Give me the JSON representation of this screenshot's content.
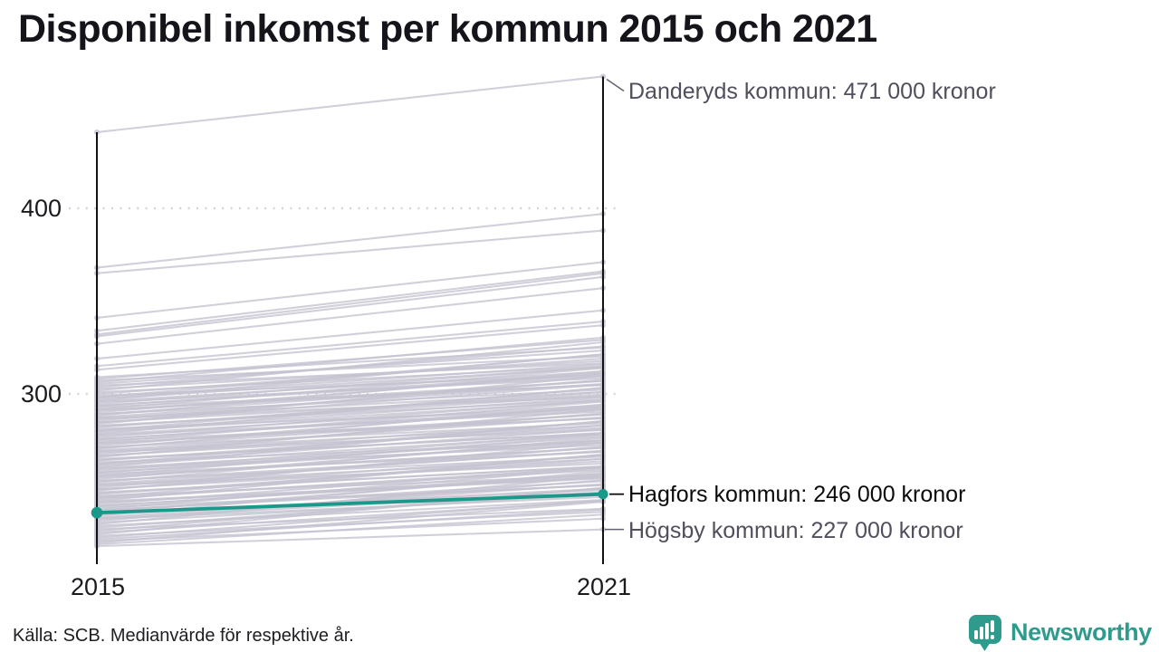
{
  "title": "Disponibel inkomst per kommun 2015 och 2021",
  "source_note": "Källa: SCB. Medianvärde för respektive år.",
  "branding": {
    "name": "Newsworthy",
    "color": "#2E9B8D"
  },
  "colors": {
    "highlight": "#1A998A",
    "line_gray": "#C5C3D0",
    "axis": "#111111",
    "text_dark": "#0B0B0E",
    "text_muted": "#4F4F5E"
  },
  "chart_data": {
    "type": "line",
    "variant": "slope",
    "title": "Disponibel inkomst per kommun 2015 och 2021",
    "x": [
      2015,
      2021
    ],
    "x_labels": [
      "2015",
      "2021"
    ],
    "y_ticks": [
      400,
      300
    ],
    "y_tick_labels": [
      "400",
      "300"
    ],
    "y_unit": "tusen kronor",
    "ylim": [
      208,
      480
    ],
    "grid": "dotted horizontal lines at y ticks",
    "legend": "none",
    "highlight_series": {
      "name": "Hagfors kommun",
      "values": [
        236,
        246
      ],
      "color": "#1A998A",
      "highlight": true
    },
    "labeled_series": [
      {
        "name": "Danderyds kommun",
        "values": [
          441,
          471
        ],
        "highlight": false
      },
      {
        "name": "Hagfors kommun",
        "values": [
          236,
          246
        ],
        "highlight": true
      },
      {
        "name": "Högsby kommun",
        "values": [
          218,
          227
        ],
        "highlight": false
      }
    ],
    "annotations": [
      {
        "text": "Danderyds kommun: 471 000 kronor",
        "emphasis": false,
        "value_2021": 471
      },
      {
        "text": "Hagfors kommun: 246 000 kronor",
        "emphasis": true,
        "value_2021": 246
      },
      {
        "text": "Högsby kommun: 227 000 kronor",
        "emphasis": false,
        "value_2021": 227
      }
    ],
    "background_lines": [
      [
        368,
        397
      ],
      [
        365,
        388
      ],
      [
        341,
        371
      ],
      [
        334,
        366
      ],
      [
        332,
        365
      ],
      [
        331,
        363
      ],
      [
        327,
        357
      ],
      [
        319,
        345
      ],
      [
        315,
        339
      ],
      [
        313,
        337
      ],
      [
        309,
        325
      ],
      [
        308.1,
        329.1
      ],
      [
        307.2,
        320.2
      ],
      [
        306.3,
        330.3
      ],
      [
        305.4,
        323.4
      ],
      [
        304.5,
        316.5
      ],
      [
        303.6,
        325.6
      ],
      [
        302.7,
        317.7
      ],
      [
        301.8,
        327.8
      ],
      [
        300.9,
        314.9
      ],
      [
        300,
        319
      ],
      [
        299.1,
        310.1
      ],
      [
        298.2,
        321.2
      ],
      [
        297.3,
        314.3
      ],
      [
        296.4,
        321.4
      ],
      [
        295.5,
        308.5
      ],
      [
        294.6,
        314.6
      ],
      [
        293.7,
        309.7
      ],
      [
        292.8,
        304.8
      ],
      [
        291.9,
        313.9
      ],
      [
        291,
        307
      ],
      [
        290.1,
        311.1
      ],
      [
        289.2,
        302.2
      ],
      [
        288.3,
        312.3
      ],
      [
        287.4,
        305.4
      ],
      [
        286.5,
        298.5
      ],
      [
        285.6,
        307.6
      ],
      [
        284.7,
        299.7
      ],
      [
        283.8,
        309.8
      ],
      [
        282.9,
        296.9
      ],
      [
        282,
        301
      ],
      [
        281.1,
        292.1
      ],
      [
        280.2,
        303.2
      ],
      [
        279.3,
        296.3
      ],
      [
        278.4,
        303.4
      ],
      [
        277.5,
        290.5
      ],
      [
        276.6,
        296.6
      ],
      [
        275.7,
        291.7
      ],
      [
        274.8,
        286.8
      ],
      [
        273.9,
        295.9
      ],
      [
        273,
        289
      ],
      [
        272.1,
        293.1
      ],
      [
        271.2,
        284.2
      ],
      [
        270.3,
        294.3
      ],
      [
        269.4,
        287.4
      ],
      [
        268.5,
        280.5
      ],
      [
        267.6,
        289.6
      ],
      [
        266.7,
        281.7
      ],
      [
        265.8,
        291.8
      ],
      [
        264.9,
        278.9
      ],
      [
        264,
        283
      ],
      [
        263.1,
        274.1
      ],
      [
        262.2,
        285.2
      ],
      [
        261.3,
        278.3
      ],
      [
        260.4,
        285.4
      ],
      [
        259.5,
        272.5
      ],
      [
        258.6,
        278.6
      ],
      [
        257.7,
        273.7
      ],
      [
        256.8,
        268.8
      ],
      [
        255.9,
        277.9
      ],
      [
        255,
        271
      ],
      [
        254.1,
        275.1
      ],
      [
        253.2,
        266.2
      ],
      [
        252.3,
        276.3
      ],
      [
        251.4,
        269.4
      ],
      [
        250.5,
        262.5
      ],
      [
        249.6,
        271.6
      ],
      [
        248.7,
        263.7
      ],
      [
        247.8,
        273.8
      ],
      [
        246.9,
        260.9
      ],
      [
        246,
        265
      ],
      [
        245.1,
        256.1
      ],
      [
        244.2,
        267.2
      ],
      [
        243.3,
        260.3
      ],
      [
        242.4,
        267.4
      ],
      [
        241.5,
        254.5
      ],
      [
        240.6,
        260.6
      ],
      [
        239.7,
        255.7
      ],
      [
        238.8,
        250.8
      ],
      [
        237.9,
        259.9
      ],
      [
        237,
        253
      ],
      [
        236.1,
        257.1
      ],
      [
        235.2,
        248.2
      ],
      [
        234.3,
        258.3
      ],
      [
        233.4,
        251.4
      ],
      [
        232.5,
        244.5
      ],
      [
        231.6,
        253.6
      ],
      [
        230.7,
        245.7
      ],
      [
        229.8,
        255.8
      ],
      [
        228.9,
        242.9
      ],
      [
        228,
        247
      ],
      [
        227.1,
        238.1
      ],
      [
        226.2,
        249.2
      ],
      [
        225.3,
        242.3
      ],
      [
        224.4,
        249.4
      ],
      [
        223.5,
        236.5
      ],
      [
        222.6,
        242.6
      ],
      [
        221.7,
        237.7
      ],
      [
        220.8,
        232.8
      ],
      [
        219.9,
        241.9
      ],
      [
        219,
        235
      ],
      [
        298,
        316
      ],
      [
        296,
        312
      ],
      [
        293.5,
        311
      ],
      [
        291.5,
        305
      ],
      [
        289,
        307
      ],
      [
        287,
        301
      ],
      [
        284.5,
        305
      ],
      [
        282.5,
        299
      ],
      [
        280,
        298
      ],
      [
        278,
        294
      ],
      [
        275.5,
        293
      ],
      [
        273.5,
        287
      ],
      [
        271,
        289
      ],
      [
        269,
        283
      ],
      [
        266.5,
        285
      ],
      [
        264.5,
        279
      ],
      [
        262,
        281
      ],
      [
        260,
        275
      ],
      [
        257.5,
        277
      ],
      [
        255.5,
        271
      ],
      [
        253,
        269
      ],
      [
        251,
        265
      ],
      [
        248.5,
        267
      ],
      [
        246.5,
        261
      ],
      [
        244,
        259
      ],
      [
        242,
        255
      ],
      [
        239.5,
        257
      ],
      [
        237.5,
        251
      ],
      [
        235,
        249
      ],
      [
        233,
        247
      ]
    ]
  }
}
